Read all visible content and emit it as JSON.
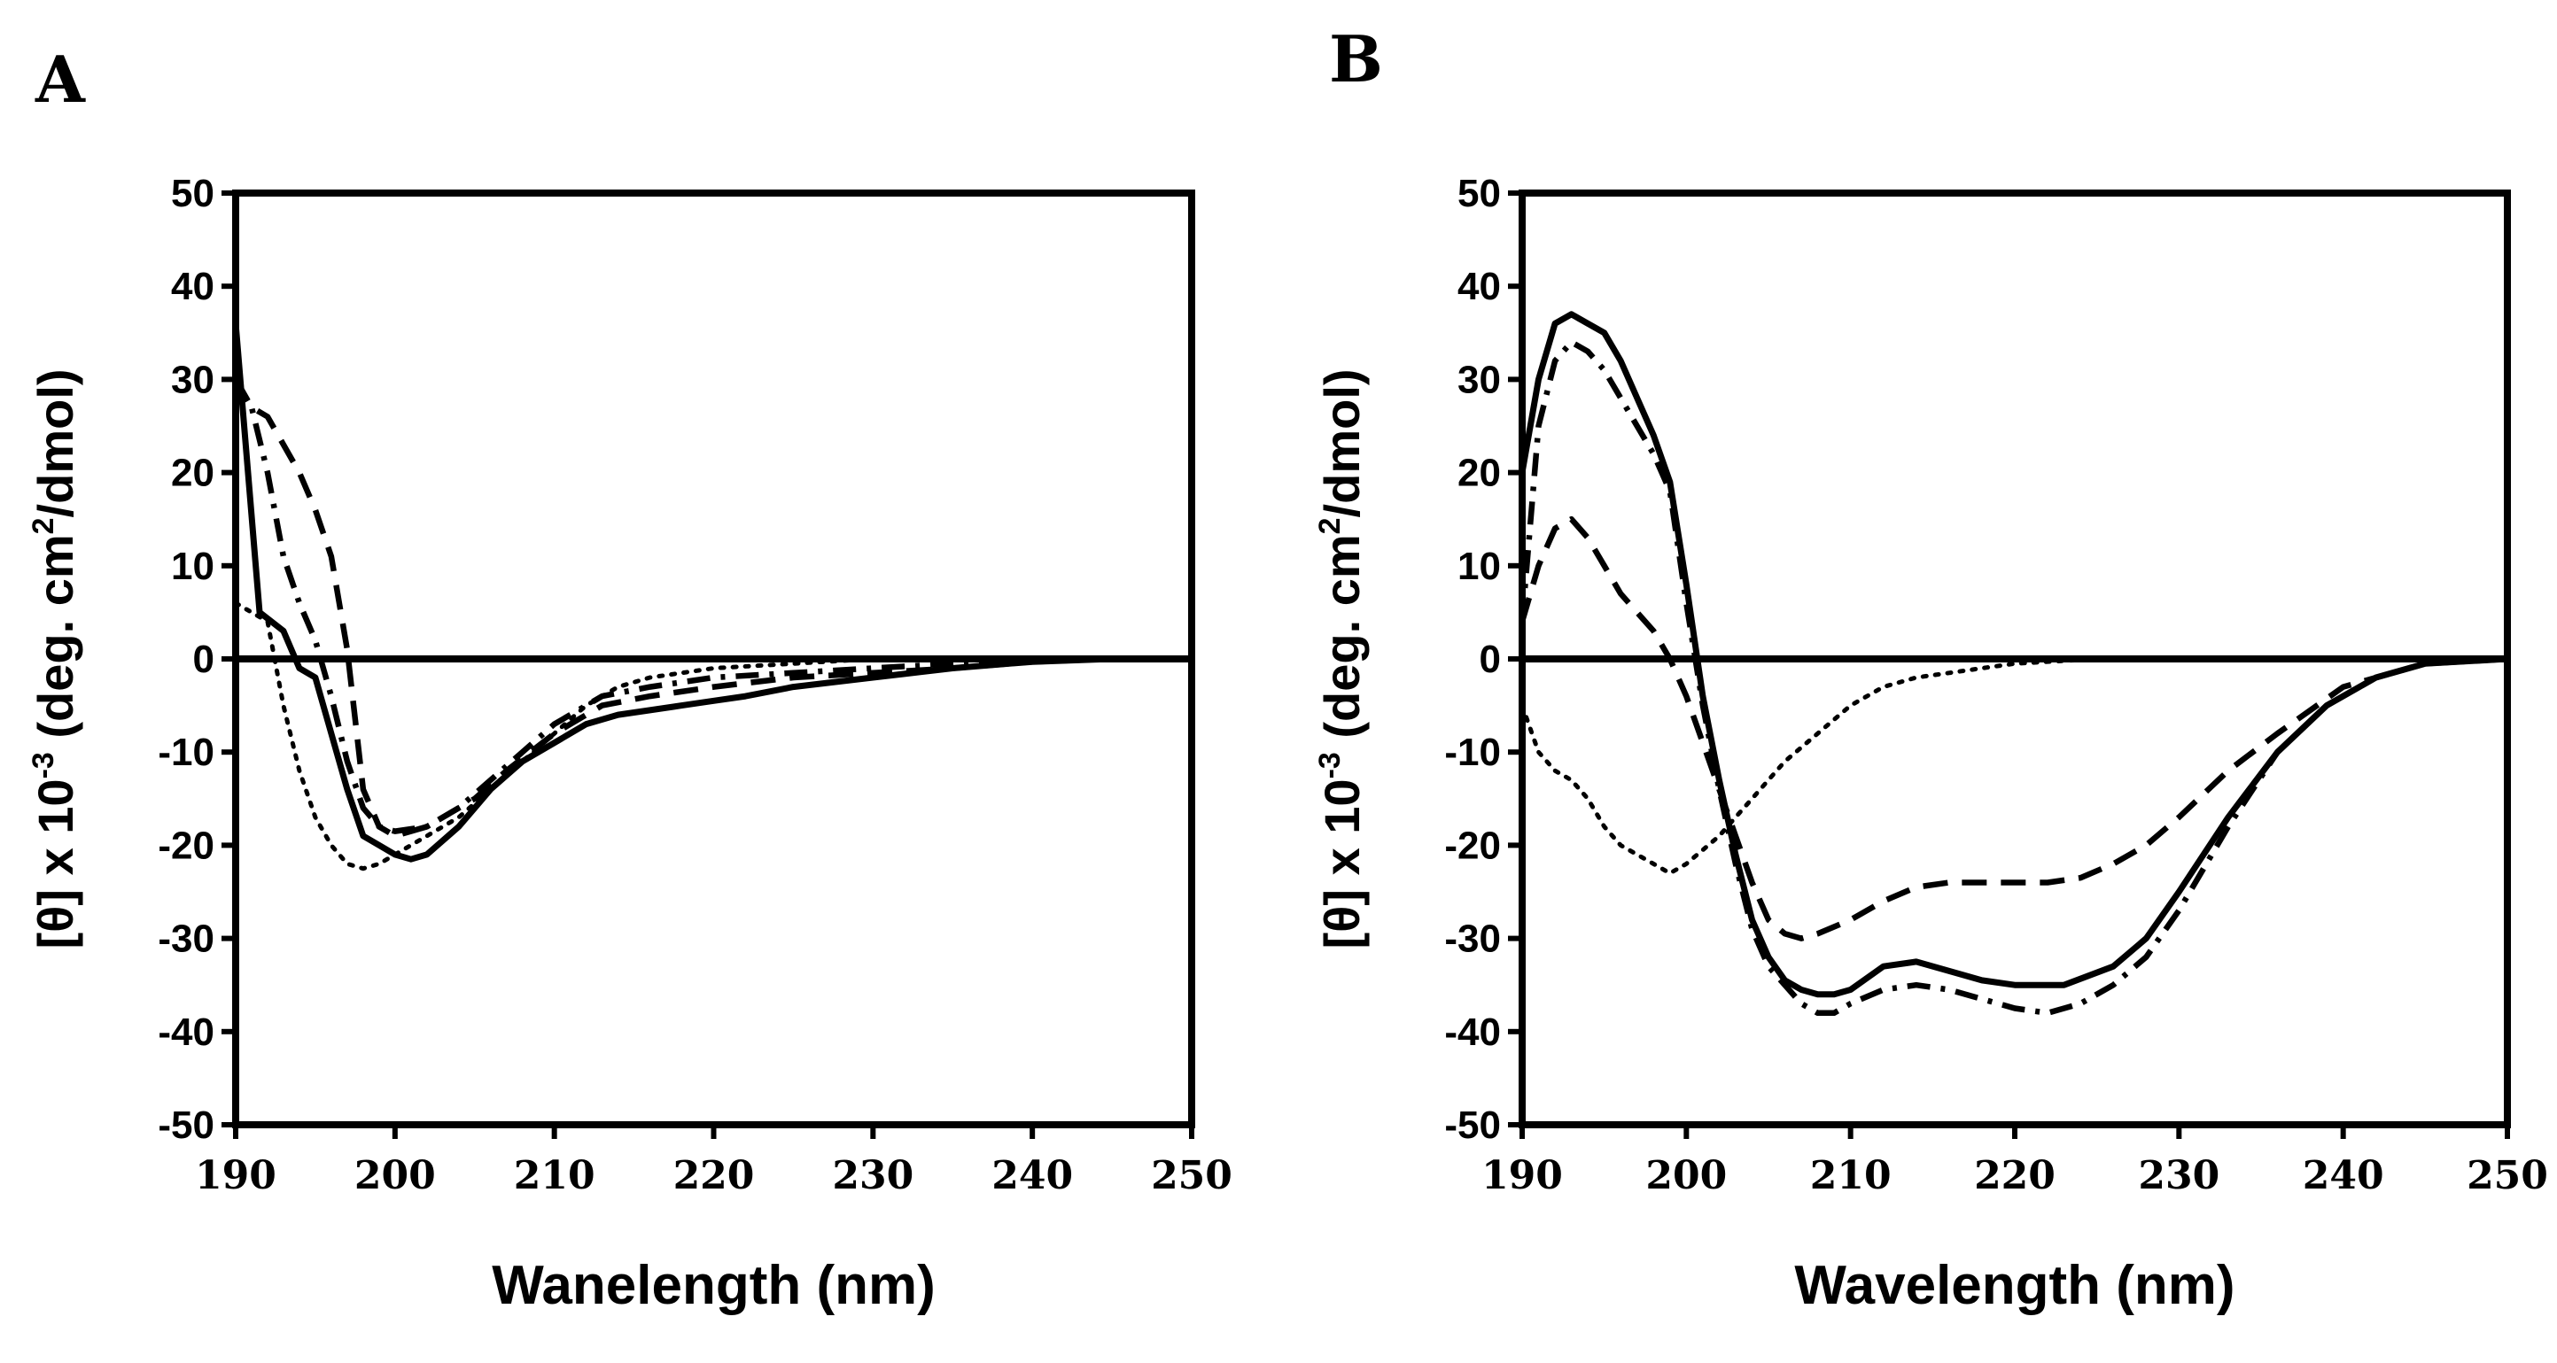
{
  "chart_data": [
    {
      "panel": "A",
      "type": "line",
      "xlabel": "Wanelength (nm)",
      "ylabel": "[θ] x 10-3 (deg. cm2/dmol)",
      "ylabel_parts": {
        "main": "[θ] x 10",
        "exp1": "-3",
        "mid": " (deg. cm",
        "exp2": "2",
        "end": "/dmol)"
      },
      "xlim": [
        190,
        250
      ],
      "ylim": [
        -50,
        50
      ],
      "xticks": [
        190,
        200,
        210,
        220,
        230,
        240,
        250
      ],
      "yticks": [
        50,
        40,
        30,
        20,
        10,
        0,
        -10,
        -20,
        -30,
        -40,
        -50
      ],
      "grid": false,
      "series": [
        {
          "name": "solid",
          "style": "solid",
          "x": [
            190,
            191.5,
            193,
            194,
            195,
            196,
            197,
            198,
            199,
            200,
            201,
            202,
            203,
            204,
            205,
            206,
            207,
            208,
            210,
            212,
            214,
            216,
            218,
            220,
            222,
            225,
            230,
            235,
            240,
            245,
            250
          ],
          "y": [
            36,
            5,
            3,
            -1,
            -2,
            -8,
            -14,
            -19,
            -20,
            -21,
            -21.5,
            -21,
            -19.5,
            -18,
            -16,
            -14,
            -12.5,
            -11,
            -9,
            -7,
            -6,
            -5.5,
            -5,
            -4.5,
            -4,
            -3,
            -2,
            -1,
            -0.3,
            0,
            0
          ]
        },
        {
          "name": "dashed",
          "style": "dashed",
          "x": [
            190,
            191,
            192,
            193,
            194,
            195,
            196,
            197,
            198,
            199,
            200,
            201,
            202,
            203,
            205,
            207,
            210,
            213,
            216,
            220,
            225,
            230,
            235,
            240,
            245,
            250
          ],
          "y": [
            30,
            27,
            26,
            23,
            20,
            16,
            11,
            1,
            -14,
            -18,
            -19,
            -18.5,
            -18,
            -17,
            -15,
            -12,
            -8,
            -5,
            -4,
            -3,
            -2,
            -1.5,
            -1,
            -0.3,
            0,
            0
          ]
        },
        {
          "name": "dash-dot",
          "style": "dashdot",
          "x": [
            190,
            191,
            192,
            193,
            194,
            195,
            196,
            197,
            198,
            199,
            200,
            202,
            204,
            206,
            208,
            210,
            213,
            216,
            220,
            225,
            230,
            235,
            240,
            245,
            250
          ],
          "y": [
            30,
            27,
            20,
            11,
            6,
            2,
            -4,
            -11,
            -16,
            -18,
            -18.5,
            -18,
            -16,
            -13,
            -10,
            -7,
            -4,
            -3,
            -2,
            -1.5,
            -1,
            -0.5,
            0,
            0,
            0
          ]
        },
        {
          "name": "dotted",
          "style": "dotted",
          "x": [
            190,
            191,
            192,
            193,
            194,
            195,
            196,
            197,
            198,
            199,
            200,
            201,
            202,
            204,
            206,
            208,
            210,
            212,
            214,
            216,
            218,
            220,
            225,
            230,
            235,
            240,
            245,
            250
          ],
          "y": [
            6,
            5,
            4,
            -5,
            -12,
            -17,
            -20,
            -22,
            -22.5,
            -22,
            -21,
            -20,
            -19,
            -17,
            -14,
            -11,
            -8,
            -5,
            -3,
            -2,
            -1.5,
            -1,
            -0.5,
            0,
            0,
            0,
            0,
            0
          ]
        }
      ]
    },
    {
      "panel": "B",
      "type": "line",
      "xlabel": "Wavelength  (nm)",
      "ylabel": "[θ] x 10-3 (deg. cm2/dmol)",
      "ylabel_parts": {
        "main": "[θ] x 10",
        "exp1": "-3",
        "mid": " (deg. cm",
        "exp2": "2",
        "end": "/dmol)"
      },
      "xlim": [
        190,
        250
      ],
      "ylim": [
        -50,
        50
      ],
      "xticks": [
        190,
        200,
        210,
        220,
        230,
        240,
        250
      ],
      "yticks": [
        50,
        40,
        30,
        20,
        10,
        0,
        -10,
        -20,
        -30,
        -40,
        -50
      ],
      "grid": false,
      "series": [
        {
          "name": "solid",
          "style": "solid",
          "x": [
            190,
            191,
            192,
            193,
            194,
            195,
            196,
            197,
            198,
            199,
            200,
            201,
            202,
            203,
            204,
            205,
            206,
            207,
            208,
            209,
            210,
            212,
            214,
            216,
            218,
            220,
            223,
            226,
            228,
            230,
            233,
            236,
            239,
            242,
            245,
            250
          ],
          "y": [
            20,
            30,
            36,
            37,
            36,
            35,
            32,
            28,
            24,
            19,
            8,
            -4,
            -13,
            -21,
            -28,
            -32,
            -34.5,
            -35.5,
            -36,
            -36,
            -35.5,
            -33,
            -32.5,
            -33.5,
            -34.5,
            -35,
            -35,
            -33,
            -30,
            -25,
            -17,
            -10,
            -5,
            -2,
            -0.5,
            0
          ]
        },
        {
          "name": "dash-dot",
          "style": "dashdot",
          "x": [
            190,
            191,
            192,
            193,
            194,
            195,
            196,
            197,
            198,
            199,
            200,
            201,
            202,
            203,
            204,
            205,
            206,
            207,
            208,
            209,
            210,
            212,
            214,
            216,
            218,
            220,
            222,
            224,
            226,
            228,
            230,
            233,
            236,
            239,
            242,
            245,
            250
          ],
          "y": [
            4,
            25,
            32,
            34,
            33,
            31,
            28,
            25,
            22,
            18,
            6,
            -5,
            -14,
            -22,
            -29,
            -33,
            -35,
            -37,
            -38,
            -38,
            -37,
            -35.5,
            -35,
            -35.5,
            -36.5,
            -37.5,
            -38,
            -37,
            -35,
            -32,
            -27,
            -18,
            -10,
            -5,
            -2,
            -0.5,
            0
          ]
        },
        {
          "name": "dashed",
          "style": "dashed",
          "x": [
            190,
            191,
            192,
            193,
            194,
            195,
            196,
            197,
            198,
            199,
            200,
            201,
            202,
            203,
            204,
            205,
            206,
            207,
            208,
            210,
            212,
            214,
            216,
            218,
            220,
            222,
            224,
            226,
            228,
            230,
            233,
            236,
            240,
            245,
            250
          ],
          "y": [
            4,
            10,
            14,
            15,
            13,
            10,
            7,
            5,
            3,
            0,
            -4,
            -9,
            -14,
            -19,
            -24,
            -28,
            -29.5,
            -30,
            -29.5,
            -28,
            -26,
            -24.5,
            -24,
            -24,
            -24,
            -24,
            -23.5,
            -22,
            -20,
            -17,
            -12,
            -8,
            -3,
            -0.5,
            0
          ]
        },
        {
          "name": "dotted",
          "style": "dotted",
          "x": [
            190,
            191,
            192,
            193,
            194,
            195,
            196,
            197,
            198,
            199,
            200,
            201,
            202,
            203,
            204,
            206,
            208,
            210,
            212,
            214,
            216,
            218,
            220,
            225,
            230,
            235,
            240,
            245,
            250
          ],
          "y": [
            -5,
            -10,
            -12,
            -13,
            -15,
            -18,
            -20,
            -21,
            -22,
            -23,
            -22,
            -20.5,
            -19,
            -17,
            -15,
            -11,
            -8,
            -5,
            -3,
            -2,
            -1.5,
            -1,
            -0.5,
            0,
            0,
            0,
            0,
            0,
            0
          ]
        }
      ]
    }
  ]
}
